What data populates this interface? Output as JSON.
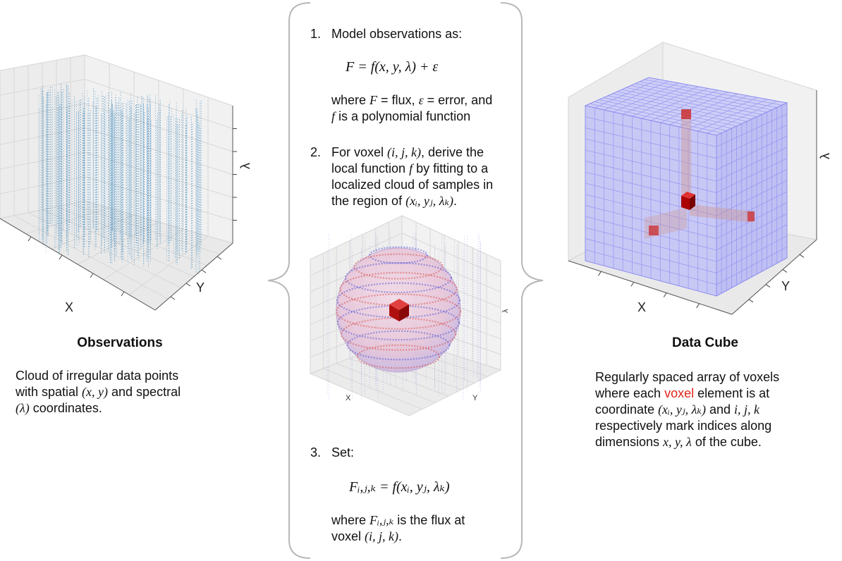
{
  "left": {
    "axis_x": "X",
    "axis_y": "Y",
    "axis_l": "λ",
    "heading": "Observations",
    "desc_line1": "Cloud of irregular data points",
    "desc_line2_a": "with spatial ",
    "desc_line2_math": "(x, y)",
    "desc_line2_b": " and spectral",
    "desc_line3_math": "(λ)",
    "desc_line3_b": " coordinates."
  },
  "middle": {
    "step1_num": "1.",
    "step1_title": "Model observations as:",
    "step1_eq": "F = f(x, y, λ) +  ε",
    "step1_where_a": "where ",
    "step1_where_F": "F",
    "step1_where_b": " = flux, ",
    "step1_where_eps": "ε",
    "step1_where_c": " = error, and",
    "step1_where2_f": "f",
    "step1_where2_b": " is a polynomial function",
    "step2_num": "2.",
    "step2_l1_a": "For voxel ",
    "step2_l1_math": "(i, j, k)",
    "step2_l1_b": ", derive the",
    "step2_l2_a": "local function ",
    "step2_l2_math": "f",
    "step2_l2_b": " by fitting to a",
    "step2_l3": "localized cloud of samples in",
    "step2_l4_a": "the region of ",
    "step2_l4_math": "(xᵢ, yⱼ, λₖ)",
    "step2_l4_b": ".",
    "sphere_axis_x": "X",
    "sphere_axis_y": "Y",
    "sphere_axis_l": "λ",
    "step3_num": "3.",
    "step3_title": "Set:",
    "step3_eq": "Fᵢ,ⱼ,ₖ = f(xᵢ, yⱼ, λₖ)",
    "step3_where_a": "where ",
    "step3_where_math": "Fᵢ,ⱼ,ₖ",
    "step3_where_b": " is the flux at",
    "step3_where2_a": "voxel ",
    "step3_where2_math": "(i, j, k)",
    "step3_where2_b": "."
  },
  "right": {
    "axis_x": "X",
    "axis_y": "Y",
    "axis_l": "λ",
    "heading": "Data Cube",
    "l1": "Regularly spaced array of voxels",
    "l2_a": "where each ",
    "l2_red": "voxel",
    "l2_b": " element is at",
    "l3_a": "coordinate ",
    "l3_math": "(xᵢ, yⱼ, λₖ)",
    "l3_b": " and ",
    "l3_math2": "i, j, k",
    "l4": "respectively mark indices along",
    "l5_a": "dimensions ",
    "l5_math": "x, y, λ",
    "l5_b": " of the cube."
  },
  "colors": {
    "scatter": "#1f77b4",
    "cube_fill": "#c8c8f5",
    "cube_grid": "#8c8cf0",
    "voxel": "#cc1111",
    "pane": "#f0f0f0",
    "brace": "#b8b8b8"
  }
}
